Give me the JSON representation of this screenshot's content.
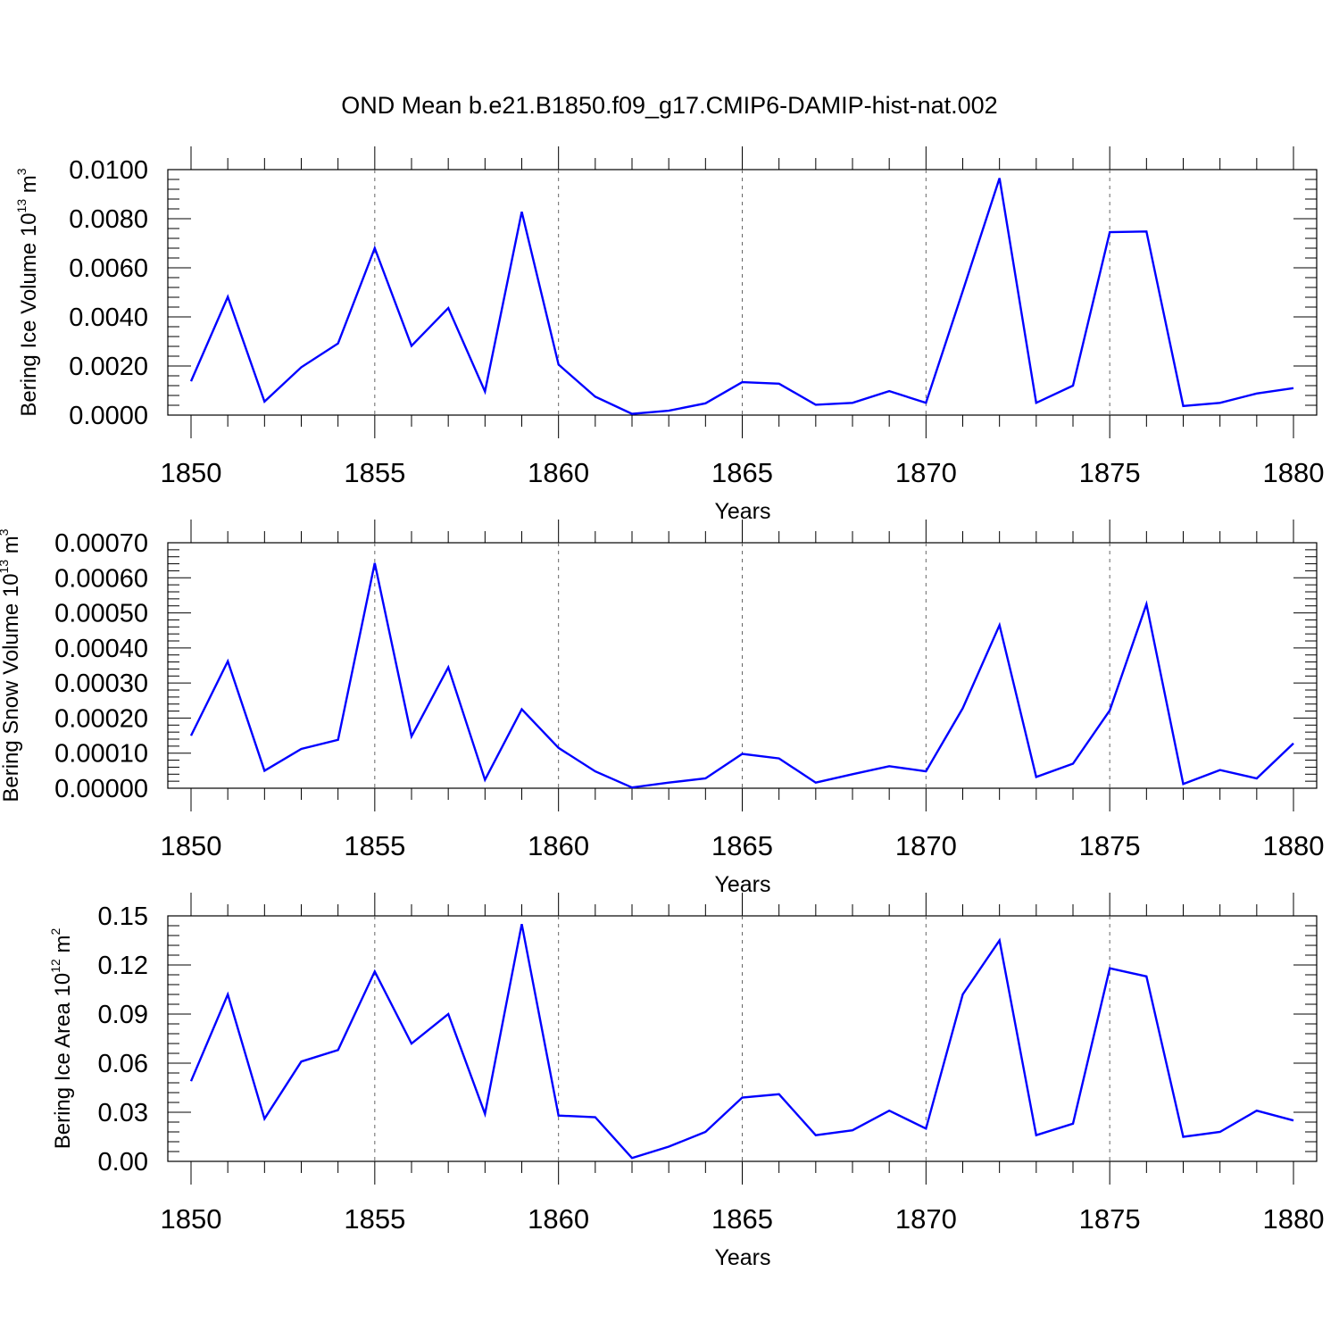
{
  "chart_data": [
    {
      "type": "line",
      "title": "OND Mean b.e21.B1850.f09_g17.CMIP6-DAMIP-hist-nat.002",
      "xlabel": "Years",
      "ylabel": {
        "text": "Bering Ice Volume 10",
        "exponent": "13",
        "unit": "m",
        "unit_exponent": "3"
      },
      "xlim": [
        1850,
        1880
      ],
      "ylim": [
        0,
        0.01
      ],
      "x_ticks": [
        1850,
        1855,
        1860,
        1865,
        1870,
        1875,
        1880
      ],
      "x_tick_labels": [
        "1850",
        "1855",
        "1860",
        "1865",
        "1870",
        "1875",
        "1880"
      ],
      "y_ticks": [
        0,
        0.002,
        0.004,
        0.006,
        0.008,
        0.01
      ],
      "y_tick_labels": [
        "0.0000",
        "0.0020",
        "0.0040",
        "0.0060",
        "0.0080",
        "0.0100"
      ],
      "color": "#0000ff",
      "grid": "vertical-dashed",
      "x": [
        1850,
        1851,
        1852,
        1853,
        1854,
        1855,
        1856,
        1857,
        1858,
        1859,
        1860,
        1861,
        1862,
        1863,
        1864,
        1865,
        1866,
        1867,
        1868,
        1869,
        1870,
        1871,
        1872,
        1873,
        1874,
        1875,
        1876,
        1877,
        1878,
        1879,
        1880
      ],
      "values": [
        0.00138,
        0.00482,
        0.00055,
        0.00195,
        0.00292,
        0.0068,
        0.00282,
        0.00436,
        0.00096,
        0.00828,
        0.00206,
        0.00075,
        5e-05,
        0.00018,
        0.00048,
        0.00134,
        0.00128,
        0.00042,
        0.0005,
        0.00098,
        0.0005,
        0.00505,
        0.00965,
        0.0005,
        0.0012,
        0.00745,
        0.00748,
        0.00037,
        0.0005,
        0.00088,
        0.0011
      ]
    },
    {
      "type": "line",
      "title": "",
      "xlabel": "Years",
      "ylabel": {
        "text": "Bering Snow Volume 10",
        "exponent": "13",
        "unit": "m",
        "unit_exponent": "3"
      },
      "xlim": [
        1850,
        1880
      ],
      "ylim": [
        0,
        0.0007
      ],
      "x_ticks": [
        1850,
        1855,
        1860,
        1865,
        1870,
        1875,
        1880
      ],
      "x_tick_labels": [
        "1850",
        "1855",
        "1860",
        "1865",
        "1870",
        "1875",
        "1880"
      ],
      "y_ticks": [
        0,
        0.0001,
        0.0002,
        0.0003,
        0.0004,
        0.0005,
        0.0006,
        0.0007
      ],
      "y_tick_labels": [
        "0.00000",
        "0.00010",
        "0.00020",
        "0.00030",
        "0.00040",
        "0.00050",
        "0.00060",
        "0.00070"
      ],
      "color": "#0000ff",
      "grid": "vertical-dashed",
      "x": [
        1850,
        1851,
        1852,
        1853,
        1854,
        1855,
        1856,
        1857,
        1858,
        1859,
        1860,
        1861,
        1862,
        1863,
        1864,
        1865,
        1866,
        1867,
        1868,
        1869,
        1870,
        1871,
        1872,
        1873,
        1874,
        1875,
        1876,
        1877,
        1878,
        1879,
        1880
      ],
      "values": [
        0.00015,
        0.000362,
        5e-05,
        0.000112,
        0.000138,
        0.000642,
        0.000148,
        0.000345,
        2.4e-05,
        0.000225,
        0.000115,
        4.8e-05,
        2e-06,
        1.6e-05,
        2.8e-05,
        9.8e-05,
        8.5e-05,
        1.6e-05,
        4e-05,
        6.3e-05,
        4.8e-05,
        0.000228,
        0.000465,
        3.2e-05,
        7e-05,
        0.000222,
        0.000525,
        1.2e-05,
        5.2e-05,
        2.8e-05,
        0.000128
      ]
    },
    {
      "type": "line",
      "title": "",
      "xlabel": "Years",
      "ylabel": {
        "text": "Bering Ice Area 10",
        "exponent": "12",
        "unit": "m",
        "unit_exponent": "2"
      },
      "xlim": [
        1850,
        1880
      ],
      "ylim": [
        0,
        0.15
      ],
      "x_ticks": [
        1850,
        1855,
        1860,
        1865,
        1870,
        1875,
        1880
      ],
      "x_tick_labels": [
        "1850",
        "1855",
        "1860",
        "1865",
        "1870",
        "1875",
        "1880"
      ],
      "y_ticks": [
        0,
        0.03,
        0.06,
        0.09,
        0.12,
        0.15
      ],
      "y_tick_labels": [
        "0.00",
        "0.03",
        "0.06",
        "0.09",
        "0.12",
        "0.15"
      ],
      "color": "#0000ff",
      "grid": "vertical-dashed",
      "x": [
        1850,
        1851,
        1852,
        1853,
        1854,
        1855,
        1856,
        1857,
        1858,
        1859,
        1860,
        1861,
        1862,
        1863,
        1864,
        1865,
        1866,
        1867,
        1868,
        1869,
        1870,
        1871,
        1872,
        1873,
        1874,
        1875,
        1876,
        1877,
        1878,
        1879,
        1880
      ],
      "values": [
        0.049,
        0.102,
        0.026,
        0.061,
        0.068,
        0.116,
        0.072,
        0.09,
        0.029,
        0.145,
        0.028,
        0.027,
        0.002,
        0.009,
        0.018,
        0.039,
        0.041,
        0.016,
        0.019,
        0.031,
        0.02,
        0.102,
        0.135,
        0.016,
        0.023,
        0.118,
        0.113,
        0.015,
        0.018,
        0.031,
        0.025
      ]
    }
  ]
}
